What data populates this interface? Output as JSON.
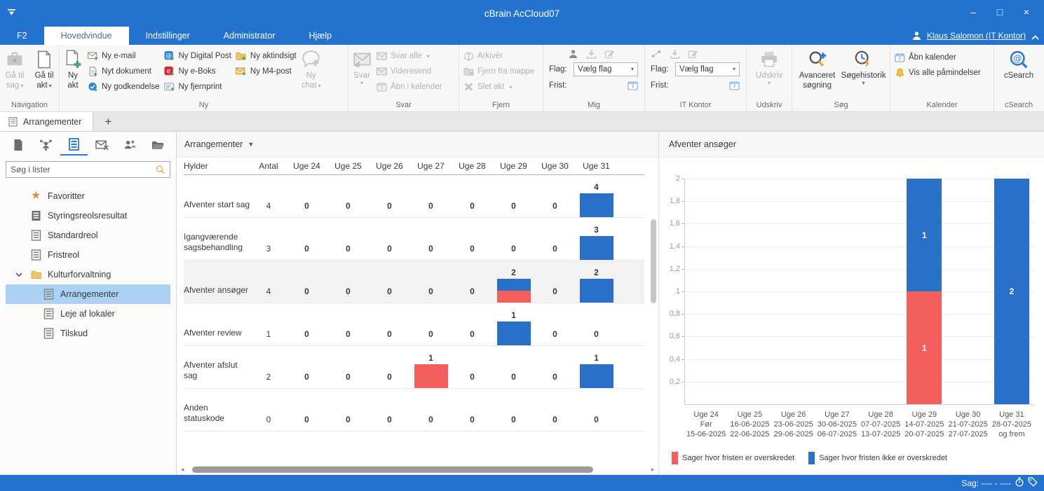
{
  "window": {
    "title": "cBrain AcCloud07"
  },
  "menubar": {
    "tabs": [
      {
        "label": "F2",
        "active": false
      },
      {
        "label": "Hovedvindue",
        "active": true
      },
      {
        "label": "Indstillinger",
        "active": false
      },
      {
        "label": "Administrator",
        "active": false
      },
      {
        "label": "Hjælp",
        "active": false
      }
    ],
    "user": "Klaus Salomon (IT Kontor)"
  },
  "ribbon": {
    "navigation": {
      "label": "Navigation",
      "ga_til_sag": "Gå til sag",
      "ga_til_akt": "Gå til akt"
    },
    "ny": {
      "label": "Ny",
      "ny_akt": "Ny akt",
      "ny_email": "Ny e-mail",
      "nyt_dokument": "Nyt dokument",
      "ny_godkendelse": "Ny godkendelse",
      "ny_digital_post": "Ny Digital Post",
      "ny_eboks": "Ny e-Boks",
      "ny_fjernprint": "Ny fjernprint",
      "ny_aktindsigt": "Ny aktindsigt",
      "ny_m4_post": "Ny M4-post",
      "ny_chat": "Ny chat"
    },
    "svar": {
      "label": "Svar",
      "svar": "Svar",
      "svar_alle": "Svar alle",
      "videresend": "Videresend",
      "abn_i_kalender": "Åbn i kalender"
    },
    "fjern": {
      "label": "Fjern",
      "arkiver": "Arkivér",
      "fjern_fra_mappe": "Fjern fra mappe",
      "slet_akt": "Slet akt"
    },
    "mig": {
      "label": "Mig",
      "flag_label": "Flag:",
      "flag_value": "Vælg flag",
      "frist_label": "Frist:"
    },
    "it_kontor": {
      "label": "IT Kontor",
      "flag_label": "Flag:",
      "flag_value": "Vælg flag",
      "frist_label": "Frist:"
    },
    "udskriv": {
      "label": "Udskriv",
      "udskriv": "Udskriv"
    },
    "sog": {
      "label": "Søg",
      "avanceret_sogning": "Avanceret søgning",
      "sogehistorik": "Søgehistorik"
    },
    "kalender": {
      "label": "Kalender",
      "abn_kalender": "Åbn kalender",
      "vis_alle_paamindelser": "Vis alle påmindelser"
    },
    "csearch": {
      "label": "cSearch",
      "csearch": "cSearch"
    }
  },
  "tabbar": {
    "active_tab": "Arrangementer",
    "new_tab": "+"
  },
  "sidebar": {
    "search_placeholder": "Søg i lister",
    "tree": [
      {
        "label": "Favoritter",
        "icon": "star",
        "level": 0
      },
      {
        "label": "Styringsreolsresultat",
        "icon": "shelf-dark",
        "level": 0
      },
      {
        "label": "Standardreol",
        "icon": "shelf",
        "level": 0
      },
      {
        "label": "Fristreol",
        "icon": "shelf",
        "level": 0
      },
      {
        "label": "Kulturforvaltning",
        "icon": "folder",
        "level": 0,
        "expanded": true
      },
      {
        "label": "Arrangementer",
        "icon": "shelf",
        "level": 1,
        "selected": true
      },
      {
        "label": "Leje af lokaler",
        "icon": "shelf",
        "level": 1
      },
      {
        "label": "Tilskud",
        "icon": "shelf",
        "level": 1
      }
    ]
  },
  "main": {
    "view_title": "Arrangementer",
    "table": {
      "columns": [
        "Hylder",
        "Antal",
        "Uge 24",
        "Uge 25",
        "Uge 26",
        "Uge 27",
        "Uge 28",
        "Uge 29",
        "Uge 30",
        "Uge 31"
      ],
      "rows": [
        {
          "label": "Afventer start sag",
          "antal": 4,
          "selected": false,
          "weeks": [
            [
              0,
              0
            ],
            [
              0,
              0
            ],
            [
              0,
              0
            ],
            [
              0,
              0
            ],
            [
              0,
              0
            ],
            [
              0,
              0
            ],
            [
              0,
              0
            ],
            [
              0,
              4
            ]
          ]
        },
        {
          "label": "Igangværende sagsbehandling",
          "antal": 3,
          "selected": false,
          "weeks": [
            [
              0,
              0
            ],
            [
              0,
              0
            ],
            [
              0,
              0
            ],
            [
              0,
              0
            ],
            [
              0,
              0
            ],
            [
              0,
              0
            ],
            [
              0,
              0
            ],
            [
              0,
              3
            ]
          ]
        },
        {
          "label": "Afventer ansøger",
          "antal": 4,
          "selected": true,
          "weeks": [
            [
              0,
              0
            ],
            [
              0,
              0
            ],
            [
              0,
              0
            ],
            [
              0,
              0
            ],
            [
              0,
              0
            ],
            [
              1,
              1
            ],
            [
              0,
              0
            ],
            [
              0,
              2
            ]
          ]
        },
        {
          "label": "Afventer review",
          "antal": 1,
          "selected": false,
          "weeks": [
            [
              0,
              0
            ],
            [
              0,
              0
            ],
            [
              0,
              0
            ],
            [
              0,
              0
            ],
            [
              0,
              0
            ],
            [
              0,
              1
            ],
            [
              0,
              0
            ],
            [
              0,
              0
            ]
          ]
        },
        {
          "label": "Afventer afslut sag",
          "antal": 2,
          "selected": false,
          "weeks": [
            [
              0,
              0
            ],
            [
              0,
              0
            ],
            [
              0,
              0
            ],
            [
              1,
              0
            ],
            [
              0,
              0
            ],
            [
              0,
              0
            ],
            [
              0,
              0
            ],
            [
              0,
              1
            ]
          ]
        },
        {
          "label": "Anden statuskode",
          "antal": 0,
          "selected": false,
          "weeks": [
            [
              0,
              0
            ],
            [
              0,
              0
            ],
            [
              0,
              0
            ],
            [
              0,
              0
            ],
            [
              0,
              0
            ],
            [
              0,
              0
            ],
            [
              0,
              0
            ],
            [
              0,
              0
            ]
          ]
        }
      ]
    }
  },
  "chart_data": {
    "type": "bar",
    "stacked": true,
    "title": "Afventer ansøger",
    "categories": [
      "Uge 24",
      "Uge 25",
      "Uge 26",
      "Uge 27",
      "Uge 28",
      "Uge 29",
      "Uge 30",
      "Uge 31"
    ],
    "category_sublabels": [
      [
        "Før",
        "15-06-2025"
      ],
      [
        "16-06-2025",
        "22-06-2025"
      ],
      [
        "23-06-2025",
        "29-06-2025"
      ],
      [
        "30-06-2025",
        "06-07-2025"
      ],
      [
        "07-07-2025",
        "13-07-2025"
      ],
      [
        "14-07-2025",
        "20-07-2025"
      ],
      [
        "21-07-2025",
        "27-07-2025"
      ],
      [
        "28-07-2025",
        "og frem"
      ]
    ],
    "series": [
      {
        "name": "Sager hvor fristen er overskredet",
        "color": "#f25f5d",
        "values": [
          0,
          0,
          0,
          0,
          0,
          1,
          0,
          0
        ]
      },
      {
        "name": "Sager hvor fristen ikke er overskredet",
        "color": "#2a70c8",
        "values": [
          0,
          0,
          0,
          0,
          0,
          1,
          0,
          2
        ]
      }
    ],
    "ylim": [
      0,
      2
    ],
    "ytick_step": 0.2,
    "ytick_labels": [
      "0,2",
      "0,4",
      "0,6",
      "0,8",
      "1",
      "1,2",
      "1,4",
      "1,6",
      "1,8",
      "2"
    ],
    "grid": true,
    "legend_position": "bottom"
  },
  "statusbar": {
    "sag": "Sag: ---- - ----"
  },
  "colors": {
    "chrome_blue": "#2272ce",
    "bar_blue": "#2a70c8",
    "bar_red": "#f25f5d",
    "selected_tree": "#abd2f2",
    "selected_row": "#f2f2f2",
    "accent_green": "#4da36a"
  }
}
